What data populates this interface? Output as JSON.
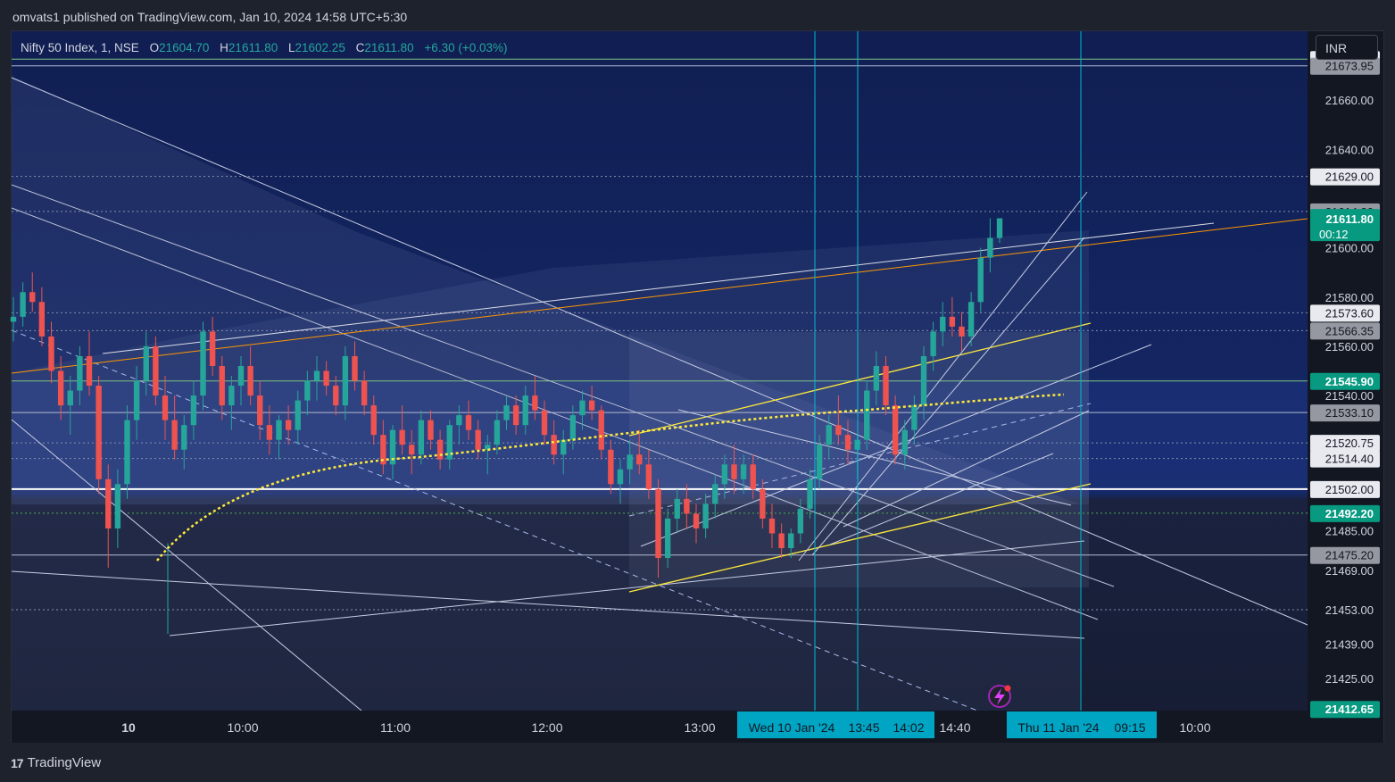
{
  "header": {
    "published": "omvats1 published on TradingView.com, Jan 10, 2024 14:58 UTC+5:30"
  },
  "legend": {
    "symbol": "Nifty 50 Index, 1, NSE",
    "o_label": "O",
    "o_value": "21604.70",
    "h_label": "H",
    "h_value": "21611.80",
    "l_label": "L",
    "l_value": "21602.25",
    "c_label": "C",
    "c_value": "21611.80",
    "change": "+6.30 (+0.03%)"
  },
  "currency": "INR",
  "brand": {
    "logo": "17",
    "name": "TradingView",
    "logo_icon": "tradingview-logo-icon"
  },
  "colors": {
    "background": "#131722",
    "up": "#26a69a",
    "down": "#ef5350",
    "accent_cyan": "#00bcd4",
    "trend_yellow": "#ffeb3b",
    "trend_orange": "#ff9800",
    "price_green": "#089981"
  },
  "chart_data": {
    "type": "candlestick",
    "title": "Nifty 50 Index, 1, NSE",
    "interval": "1 minute",
    "currency": "INR",
    "y_range": [
      21412,
      21688
    ],
    "grid": false,
    "x_ticks": [
      {
        "label": "10",
        "time": "09:15"
      },
      {
        "label": "10:00",
        "time": "10:00"
      },
      {
        "label": "11:00",
        "time": "11:00"
      },
      {
        "label": "12:00",
        "time": "12:00"
      },
      {
        "label": "13:00",
        "time": "13:00"
      },
      {
        "label": "14:40",
        "time": "14:40"
      },
      {
        "label": "10:00",
        "time": "next-day 10:00"
      }
    ],
    "x_highlights": [
      {
        "label": "Wed 10 Jan '24",
        "time": "13:15"
      },
      {
        "label": "13:45",
        "time": "13:45"
      },
      {
        "label": "14:02",
        "time": "14:02"
      },
      {
        "label": "Thu 11 Jan '24",
        "time": "next-day 09:15"
      },
      {
        "label": "09:15",
        "time": "next-day 09:15"
      }
    ],
    "y_ticks": [
      "21660.00",
      "21640.00",
      "21600.00",
      "21580.00",
      "21560.00",
      "21540.00",
      "21485.00",
      "21469.00",
      "21453.00",
      "21439.00",
      "21425.00"
    ],
    "y_tick_values": [
      21660,
      21640,
      21600,
      21580,
      21560,
      21540,
      21485,
      21469,
      21453,
      21439,
      21425
    ],
    "price_tags": [
      {
        "label": "21676.65",
        "value": 21676.65,
        "style": "light"
      },
      {
        "label": "21673.95",
        "value": 21673.95,
        "style": "gray"
      },
      {
        "label": "21629.00",
        "value": 21629.0,
        "style": "light"
      },
      {
        "label": "21614.80",
        "value": 21614.8,
        "style": "gray"
      },
      {
        "label": "21573.60",
        "value": 21573.6,
        "style": "light"
      },
      {
        "label": "21566.35",
        "value": 21566.35,
        "style": "gray"
      },
      {
        "label": "21545.90",
        "value": 21545.9,
        "style": "green"
      },
      {
        "label": "21533.10",
        "value": 21533.1,
        "style": "gray"
      },
      {
        "label": "21520.75",
        "value": 21520.75,
        "style": "light"
      },
      {
        "label": "21514.40",
        "value": 21514.4,
        "style": "light"
      },
      {
        "label": "21502.00",
        "value": 21502.0,
        "style": "light"
      },
      {
        "label": "21492.20",
        "value": 21492.2,
        "style": "green"
      },
      {
        "label": "21475.20",
        "value": 21475.2,
        "style": "gray"
      },
      {
        "label": "21412.65",
        "value": 21412.65,
        "style": "green"
      }
    ],
    "last_price": {
      "label": "21611.80",
      "countdown": "00:12",
      "value": 21611.8
    },
    "horizontal_levels": [
      {
        "value": 21676.65,
        "style": "solid-green"
      },
      {
        "value": 21673.95,
        "style": "solid-light"
      },
      {
        "value": 21629.0,
        "style": "dotted"
      },
      {
        "value": 21614.8,
        "style": "dotted"
      },
      {
        "value": 21573.6,
        "style": "dotted"
      },
      {
        "value": 21566.35,
        "style": "dotted"
      },
      {
        "value": 21545.9,
        "style": "solid-green"
      },
      {
        "value": 21533.1,
        "style": "solid-light"
      },
      {
        "value": 21520.75,
        "style": "dotted"
      },
      {
        "value": 21514.4,
        "style": "dotted"
      },
      {
        "value": 21502.0,
        "style": "solid-white"
      },
      {
        "value": 21492.2,
        "style": "dotted-green"
      },
      {
        "value": 21475.2,
        "style": "solid-light"
      },
      {
        "value": 21453.0,
        "style": "dotted"
      }
    ],
    "candles": [
      [
        21570,
        21580,
        21562,
        21572
      ],
      [
        21572,
        21586,
        21568,
        21582
      ],
      [
        21582,
        21590,
        21574,
        21578
      ],
      [
        21578,
        21584,
        21560,
        21564
      ],
      [
        21564,
        21570,
        21545,
        21550
      ],
      [
        21550,
        21556,
        21530,
        21536
      ],
      [
        21536,
        21548,
        21524,
        21542
      ],
      [
        21542,
        21560,
        21536,
        21556
      ],
      [
        21556,
        21566,
        21540,
        21544
      ],
      [
        21544,
        21548,
        21500,
        21506
      ],
      [
        21506,
        21512,
        21470,
        21486
      ],
      [
        21486,
        21510,
        21478,
        21504
      ],
      [
        21504,
        21536,
        21498,
        21530
      ],
      [
        21530,
        21552,
        21522,
        21546
      ],
      [
        21546,
        21566,
        21540,
        21560
      ],
      [
        21560,
        21564,
        21536,
        21540
      ],
      [
        21540,
        21548,
        21522,
        21530
      ],
      [
        21530,
        21540,
        21514,
        21518
      ],
      [
        21518,
        21532,
        21510,
        21528
      ],
      [
        21528,
        21546,
        21522,
        21540
      ],
      [
        21540,
        21570,
        21534,
        21566
      ],
      [
        21566,
        21572,
        21548,
        21552
      ],
      [
        21552,
        21556,
        21530,
        21536
      ],
      [
        21536,
        21548,
        21526,
        21544
      ],
      [
        21544,
        21556,
        21536,
        21552
      ],
      [
        21552,
        21560,
        21536,
        21540
      ],
      [
        21540,
        21546,
        21522,
        21528
      ],
      [
        21528,
        21536,
        21516,
        21522
      ],
      [
        21522,
        21532,
        21514,
        21530
      ],
      [
        21530,
        21536,
        21520,
        21526
      ],
      [
        21526,
        21542,
        21520,
        21538
      ],
      [
        21538,
        21550,
        21532,
        21546
      ],
      [
        21546,
        21556,
        21538,
        21550
      ],
      [
        21550,
        21554,
        21540,
        21544
      ],
      [
        21544,
        21548,
        21532,
        21536
      ],
      [
        21536,
        21560,
        21530,
        21556
      ],
      [
        21556,
        21562,
        21542,
        21546
      ],
      [
        21546,
        21550,
        21532,
        21536
      ],
      [
        21536,
        21540,
        21520,
        21524
      ],
      [
        21524,
        21530,
        21508,
        21512
      ],
      [
        21512,
        21528,
        21506,
        21526
      ],
      [
        21526,
        21536,
        21516,
        21520
      ],
      [
        21520,
        21526,
        21508,
        21516
      ],
      [
        21516,
        21534,
        21512,
        21530
      ],
      [
        21530,
        21534,
        21518,
        21522
      ],
      [
        21522,
        21526,
        21510,
        21514
      ],
      [
        21514,
        21530,
        21510,
        21528
      ],
      [
        21528,
        21536,
        21520,
        21532
      ],
      [
        21532,
        21538,
        21522,
        21526
      ],
      [
        21526,
        21530,
        21514,
        21518
      ],
      [
        21518,
        21524,
        21508,
        21520
      ],
      [
        21520,
        21534,
        21516,
        21530
      ],
      [
        21530,
        21540,
        21526,
        21536
      ],
      [
        21536,
        21540,
        21524,
        21528
      ],
      [
        21528,
        21544,
        21524,
        21540
      ],
      [
        21540,
        21548,
        21530,
        21534
      ],
      [
        21534,
        21538,
        21520,
        21524
      ],
      [
        21524,
        21530,
        21512,
        21516
      ],
      [
        21516,
        21526,
        21508,
        21522
      ],
      [
        21522,
        21536,
        21518,
        21532
      ],
      [
        21532,
        21542,
        21526,
        21538
      ],
      [
        21538,
        21544,
        21530,
        21534
      ],
      [
        21534,
        21536,
        21514,
        21518
      ],
      [
        21518,
        21522,
        21500,
        21504
      ],
      [
        21504,
        21514,
        21496,
        21510
      ],
      [
        21510,
        21522,
        21504,
        21516
      ],
      [
        21516,
        21526,
        21508,
        21512
      ],
      [
        21512,
        21518,
        21498,
        21502
      ],
      [
        21502,
        21506,
        21466,
        21474
      ],
      [
        21474,
        21494,
        21470,
        21490
      ],
      [
        21490,
        21502,
        21484,
        21498
      ],
      [
        21498,
        21504,
        21486,
        21492
      ],
      [
        21492,
        21496,
        21480,
        21486
      ],
      [
        21486,
        21500,
        21482,
        21496
      ],
      [
        21496,
        21508,
        21490,
        21504
      ],
      [
        21504,
        21516,
        21498,
        21512
      ],
      [
        21512,
        21520,
        21500,
        21506
      ],
      [
        21506,
        21516,
        21500,
        21512
      ],
      [
        21512,
        21516,
        21498,
        21502
      ],
      [
        21502,
        21506,
        21486,
        21490
      ],
      [
        21490,
        21496,
        21478,
        21484
      ],
      [
        21484,
        21488,
        21474,
        21478
      ],
      [
        21478,
        21486,
        21474,
        21484
      ],
      [
        21484,
        21498,
        21480,
        21494
      ],
      [
        21494,
        21510,
        21490,
        21506
      ],
      [
        21506,
        21524,
        21502,
        21520
      ],
      [
        21520,
        21532,
        21514,
        21528
      ],
      [
        21528,
        21540,
        21520,
        21524
      ],
      [
        21524,
        21530,
        21512,
        21518
      ],
      [
        21518,
        21524,
        21506,
        21522
      ],
      [
        21522,
        21546,
        21518,
        21542
      ],
      [
        21542,
        21558,
        21536,
        21552
      ],
      [
        21552,
        21556,
        21532,
        21536
      ],
      [
        21536,
        21540,
        21512,
        21516
      ],
      [
        21516,
        21530,
        21510,
        21526
      ],
      [
        21526,
        21540,
        21520,
        21536
      ],
      [
        21536,
        21560,
        21530,
        21556
      ],
      [
        21556,
        21570,
        21550,
        21566
      ],
      [
        21566,
        21578,
        21560,
        21572
      ],
      [
        21572,
        21580,
        21564,
        21568
      ],
      [
        21568,
        21574,
        21558,
        21564
      ],
      [
        21564,
        21582,
        21560,
        21578
      ],
      [
        21578,
        21600,
        21574,
        21596
      ],
      [
        21596,
        21612,
        21590,
        21604
      ],
      [
        21604,
        21612,
        21602,
        21612
      ]
    ],
    "overlays": {
      "yellow_dotted_curve": "anchored vwap",
      "channels": "multiple diagonal trend lines and parallel channels",
      "vertical_markers": [
        "13:15",
        "13:45",
        "next-day 09:15"
      ]
    }
  }
}
